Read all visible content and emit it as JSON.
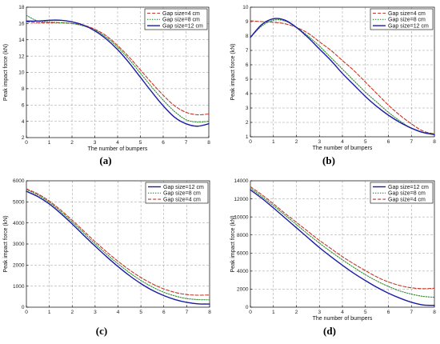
{
  "colors": {
    "gap4": "#c0392b",
    "gap8": "#2e8b2e",
    "gap12": "#1a1aa6",
    "grid": "#9a9a9a",
    "axis": "#000000"
  },
  "chart_data": [
    {
      "id": "a",
      "panel_label": "(a)",
      "type": "line",
      "xlabel": "The number of bumpers",
      "ylabel": "Peak impact force (kN)",
      "xlim": [
        0,
        8
      ],
      "ylim": [
        2,
        18
      ],
      "xticks": [
        "0",
        "1",
        "2",
        "3",
        "4",
        "5",
        "6",
        "7",
        "8"
      ],
      "yticks": [
        "2",
        "4",
        "6",
        "8",
        "10",
        "12",
        "14",
        "16",
        "18"
      ],
      "grid": true,
      "legend_position": "top-right",
      "series": [
        {
          "name": "Gap size=4 cm",
          "style": "dashed",
          "color_key": "gap4",
          "x": [
            0,
            0.5,
            1,
            1.5,
            2,
            2.5,
            3,
            3.5,
            4,
            4.5,
            5,
            5.5,
            6,
            6.5,
            7,
            7.5,
            8
          ],
          "y": [
            16.2,
            16.1,
            16.1,
            16.1,
            16.0,
            15.8,
            15.3,
            14.5,
            13.3,
            11.9,
            10.3,
            8.7,
            7.2,
            5.9,
            5.1,
            4.8,
            4.9
          ]
        },
        {
          "name": "Gap size=8 cm",
          "style": "dotted",
          "color_key": "gap8",
          "x": [
            0,
            0.5,
            1,
            1.5,
            2,
            2.5,
            3,
            3.5,
            4,
            4.5,
            5,
            5.5,
            6,
            6.5,
            7,
            7.5,
            8
          ],
          "y": [
            17.0,
            16.3,
            16.2,
            16.1,
            16.0,
            15.7,
            15.2,
            14.3,
            13.1,
            11.6,
            9.9,
            8.2,
            6.6,
            5.2,
            4.2,
            3.9,
            4.0
          ]
        },
        {
          "name": "Gap size=12 cm",
          "style": "solid",
          "color_key": "gap12",
          "x": [
            0,
            0.5,
            1,
            1.5,
            2,
            2.5,
            3,
            3.5,
            4,
            4.5,
            5,
            5.5,
            6,
            6.5,
            7,
            7.5,
            8
          ],
          "y": [
            16.3,
            16.3,
            16.4,
            16.4,
            16.2,
            15.8,
            15.1,
            14.1,
            12.8,
            11.2,
            9.4,
            7.6,
            5.9,
            4.5,
            3.7,
            3.4,
            3.7
          ]
        }
      ]
    },
    {
      "id": "b",
      "panel_label": "(b)",
      "type": "line",
      "xlabel": "The number of bumpers",
      "ylabel": "Peak impact force (kN)",
      "xlim": [
        0,
        8
      ],
      "ylim": [
        1,
        10
      ],
      "xticks": [
        "0",
        "1",
        "2",
        "3",
        "4",
        "5",
        "6",
        "7",
        "8"
      ],
      "yticks": [
        "1",
        "2",
        "3",
        "4",
        "5",
        "6",
        "7",
        "8",
        "9",
        "10"
      ],
      "grid": true,
      "legend_position": "top-right",
      "series": [
        {
          "name": "Gap size=4 cm",
          "style": "dashed",
          "color_key": "gap4",
          "x": [
            0,
            0.5,
            1,
            1.5,
            2,
            2.5,
            3,
            3.5,
            4,
            4.5,
            5,
            5.5,
            6,
            6.5,
            7,
            7.5,
            8
          ],
          "y": [
            9.05,
            9.0,
            8.95,
            8.85,
            8.6,
            8.2,
            7.6,
            7.0,
            6.3,
            5.6,
            4.8,
            4.0,
            3.2,
            2.5,
            1.9,
            1.4,
            1.2
          ]
        },
        {
          "name": "Gap size=8 cm",
          "style": "dotted",
          "color_key": "gap8",
          "x": [
            0,
            0.5,
            1,
            1.5,
            2,
            2.5,
            3,
            3.5,
            4,
            4.5,
            5,
            5.5,
            6,
            6.5,
            7,
            7.5,
            8
          ],
          "y": [
            7.9,
            8.7,
            9.1,
            9.05,
            8.6,
            8.0,
            7.3,
            6.5,
            5.7,
            4.9,
            4.1,
            3.4,
            2.7,
            2.1,
            1.6,
            1.3,
            1.2
          ]
        },
        {
          "name": "Gap size=12 cm",
          "style": "solid",
          "color_key": "gap12",
          "x": [
            0,
            0.5,
            1,
            1.5,
            2,
            2.5,
            3,
            3.5,
            4,
            4.5,
            5,
            5.5,
            6,
            6.5,
            7,
            7.5,
            8
          ],
          "y": [
            7.9,
            8.8,
            9.2,
            9.1,
            8.6,
            7.9,
            7.1,
            6.3,
            5.4,
            4.6,
            3.8,
            3.1,
            2.5,
            2.0,
            1.6,
            1.3,
            1.15
          ]
        }
      ]
    },
    {
      "id": "c",
      "panel_label": "(c)",
      "type": "line",
      "xlabel": "",
      "ylabel": "Peak impact force (kN)",
      "xlim": [
        0,
        8
      ],
      "ylim": [
        0,
        6000
      ],
      "xticks": [
        "0",
        "1",
        "2",
        "3",
        "4",
        "5",
        "6",
        "7",
        "8"
      ],
      "yticks": [
        "0",
        "1000",
        "2000",
        "3000",
        "4000",
        "5000",
        "6000"
      ],
      "grid": true,
      "legend_position": "top-right",
      "series": [
        {
          "name": "Gap size=12 cm",
          "style": "solid",
          "color_key": "gap12",
          "x": [
            0,
            0.5,
            1,
            1.5,
            2,
            2.5,
            3,
            3.5,
            4,
            4.5,
            5,
            5.5,
            6,
            6.5,
            7,
            7.5,
            8
          ],
          "y": [
            5500,
            5250,
            4900,
            4450,
            3950,
            3420,
            2900,
            2400,
            1930,
            1500,
            1120,
            800,
            550,
            360,
            230,
            160,
            150
          ]
        },
        {
          "name": "Gap size=8 cm",
          "style": "dotted",
          "color_key": "gap8",
          "x": [
            0,
            0.5,
            1,
            1.5,
            2,
            2.5,
            3,
            3.5,
            4,
            4.5,
            5,
            5.5,
            6,
            6.5,
            7,
            7.5,
            8
          ],
          "y": [
            5580,
            5330,
            4980,
            4540,
            4050,
            3530,
            3010,
            2520,
            2060,
            1640,
            1270,
            960,
            710,
            530,
            410,
            360,
            350
          ]
        },
        {
          "name": "Gap size=4 cm",
          "style": "dashed",
          "color_key": "gap4",
          "x": [
            0,
            0.5,
            1,
            1.5,
            2,
            2.5,
            3,
            3.5,
            4,
            4.5,
            5,
            5.5,
            6,
            6.5,
            7,
            7.5,
            8
          ],
          "y": [
            5620,
            5380,
            5040,
            4610,
            4130,
            3620,
            3110,
            2630,
            2180,
            1770,
            1410,
            1110,
            870,
            700,
            600,
            570,
            580
          ]
        }
      ]
    },
    {
      "id": "d",
      "panel_label": "(d)",
      "type": "line",
      "xlabel": "The number of bumpers",
      "ylabel": "Peak impact force (kN)",
      "xlim": [
        0,
        8
      ],
      "ylim": [
        0,
        14000
      ],
      "xticks": [
        "0",
        "1",
        "2",
        "3",
        "4",
        "5",
        "6",
        "7",
        "8"
      ],
      "yticks": [
        "0",
        "2000",
        "4000",
        "6000",
        "8000",
        "10000",
        "12000",
        "14000"
      ],
      "grid": true,
      "legend_position": "top-right",
      "series": [
        {
          "name": "Gap size=12 cm",
          "style": "solid",
          "color_key": "gap12",
          "x": [
            0,
            0.5,
            1,
            1.5,
            2,
            2.5,
            3,
            3.5,
            4,
            4.5,
            5,
            5.5,
            6,
            6.5,
            7,
            7.5,
            8
          ],
          "y": [
            13000,
            12050,
            11000,
            9900,
            8800,
            7700,
            6600,
            5600,
            4650,
            3750,
            2950,
            2200,
            1550,
            1000,
            550,
            250,
            200
          ]
        },
        {
          "name": "Gap size=8 cm",
          "style": "dotted",
          "color_key": "gap8",
          "x": [
            0,
            0.5,
            1,
            1.5,
            2,
            2.5,
            3,
            3.5,
            4,
            4.5,
            5,
            5.5,
            6,
            6.5,
            7,
            7.5,
            8
          ],
          "y": [
            13200,
            12250,
            11250,
            10200,
            9150,
            8100,
            7100,
            6150,
            5250,
            4400,
            3600,
            2900,
            2300,
            1800,
            1450,
            1200,
            1100
          ]
        },
        {
          "name": "Gap size=4 cm",
          "style": "dashed",
          "color_key": "gap4",
          "x": [
            0,
            0.5,
            1,
            1.5,
            2,
            2.5,
            3,
            3.5,
            4,
            4.5,
            5,
            5.5,
            6,
            6.5,
            7,
            7.5,
            8
          ],
          "y": [
            13350,
            12450,
            11450,
            10400,
            9400,
            8400,
            7400,
            6500,
            5600,
            4800,
            4050,
            3350,
            2800,
            2400,
            2150,
            2050,
            2100
          ]
        }
      ]
    }
  ]
}
